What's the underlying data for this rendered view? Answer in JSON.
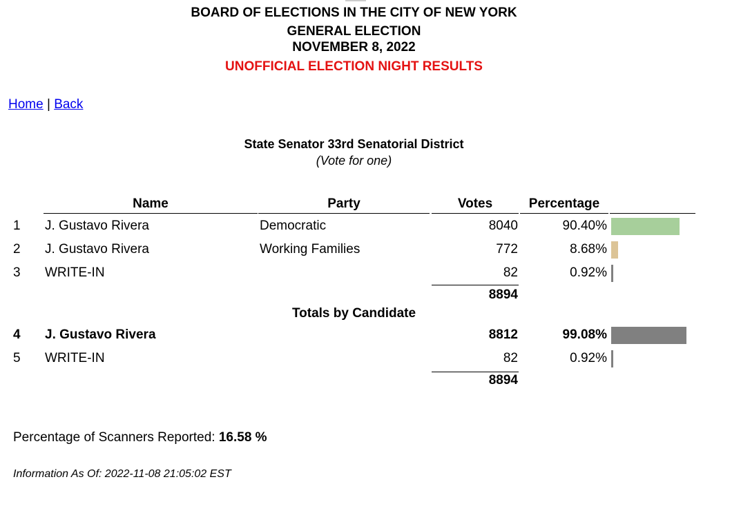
{
  "header": {
    "line1": "BOARD OF ELECTIONS IN THE CITY OF NEW YORK",
    "line2": "GENERAL ELECTION",
    "line3": "NOVEMBER 8, 2022",
    "line4": "UNOFFICIAL ELECTION NIGHT RESULTS",
    "line4_color": "#e41212"
  },
  "nav": {
    "home": "Home",
    "separator": "|",
    "back": "Back"
  },
  "race": {
    "title": "State Senator 33rd Senatorial District",
    "subtitle": "(Vote for one)"
  },
  "columns": {
    "name": "Name",
    "party": "Party",
    "votes": "Votes",
    "percentage": "Percentage"
  },
  "rows": [
    {
      "num": "1",
      "name": "J. Gustavo Rivera",
      "party": "Democratic",
      "votes": "8040",
      "pct": "90.40%",
      "fraction": 0.904,
      "color": "#a7cf9b"
    },
    {
      "num": "2",
      "name": "J. Gustavo Rivera",
      "party": "Working Families",
      "votes": "772",
      "pct": "8.68%",
      "fraction": 0.0868,
      "color": "#dcc497"
    },
    {
      "num": "3",
      "name": "WRITE-IN",
      "party": "",
      "votes": "82",
      "pct": "0.92%",
      "fraction": 0.0092,
      "color": "#808080"
    }
  ],
  "total1": "8894",
  "totals_heading": "Totals by Candidate",
  "candidate_rows": [
    {
      "num": "4",
      "name": "J. Gustavo Rivera",
      "votes": "8812",
      "pct": "99.08%",
      "fraction": 0.9908,
      "color": "#808080"
    },
    {
      "num": "5",
      "name": "WRITE-IN",
      "votes": "82",
      "pct": "0.92%",
      "fraction": 0.0092,
      "color": "#808080"
    }
  ],
  "total2": "8894",
  "scanners": {
    "label": "Percentage of Scanners Reported:",
    "value": "16.58 %"
  },
  "info": {
    "label": "Information As Of:",
    "timestamp": "2022-11-08 21:05:02 EST"
  }
}
